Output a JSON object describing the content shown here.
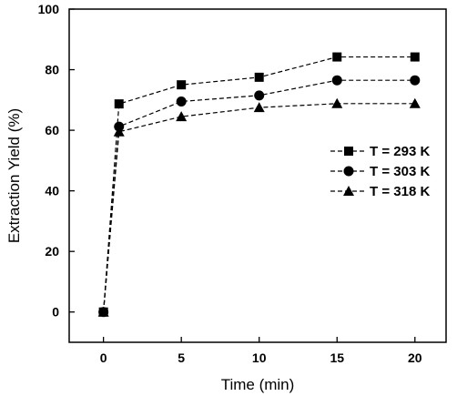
{
  "chart_data": {
    "type": "line",
    "title": "",
    "xlabel": "Time (min)",
    "ylabel": "Extraction Yield (%)",
    "xlim": [
      -2.2,
      22
    ],
    "ylim": [
      -10,
      100
    ],
    "xticks": [
      0,
      5,
      10,
      15,
      20
    ],
    "yticks": [
      0,
      20,
      40,
      60,
      80,
      100
    ],
    "grid": false,
    "legend_position": "right",
    "line_style": "dashed",
    "series": [
      {
        "name": "T = 293 K",
        "marker": "square",
        "x": [
          0,
          1,
          5,
          10,
          15,
          20
        ],
        "y": [
          0,
          68.7,
          75,
          77.5,
          84.2,
          84.2
        ]
      },
      {
        "name": "T = 303 K",
        "marker": "circle",
        "x": [
          0,
          1,
          5,
          10,
          15,
          20
        ],
        "y": [
          0,
          61.2,
          69.5,
          71.5,
          76.5,
          76.5
        ]
      },
      {
        "name": "T = 318 K",
        "marker": "triangle",
        "x": [
          0,
          1,
          5,
          10,
          15,
          20
        ],
        "y": [
          0,
          59.5,
          64.5,
          67.5,
          68.8,
          68.8
        ]
      }
    ]
  }
}
